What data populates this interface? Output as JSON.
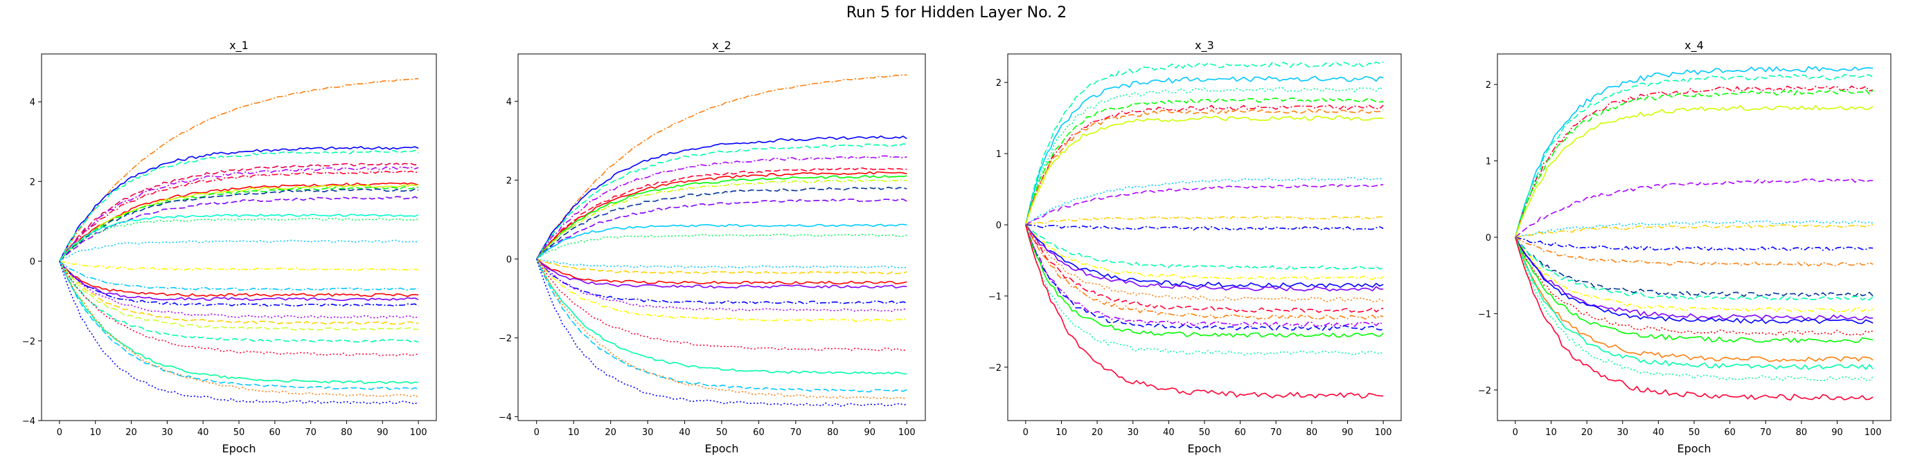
{
  "figure": {
    "suptitle": "Run 5 for Hidden Layer No. 2"
  },
  "chart_data": [
    {
      "type": "line",
      "title": "x_1",
      "xlabel": "Epoch",
      "ylabel": "",
      "xlim": [
        -5,
        105
      ],
      "ylim": [
        -4,
        5.2
      ],
      "xticks": [
        0,
        10,
        20,
        30,
        40,
        50,
        60,
        70,
        80,
        90,
        100
      ],
      "yticks": [
        -4,
        -2,
        0,
        2,
        4
      ],
      "grid": false,
      "series": [
        {
          "color": "#ff7f0e",
          "dash": "dashdot",
          "end": 4.75,
          "s": 0.45,
          "k": 0.06
        },
        {
          "color": "#0000ff",
          "dash": "solid",
          "end": 2.85,
          "s": 1.0,
          "k": 0.12
        },
        {
          "color": "#00ffaa",
          "dash": "dashed",
          "end": 2.75,
          "s": 0.9,
          "k": 0.12
        },
        {
          "color": "#e6004c",
          "dash": "dashed",
          "end": 2.45,
          "s": 0.8,
          "k": 0.1
        },
        {
          "color": "#aa00ff",
          "dash": "dashdot",
          "end": 2.35,
          "s": 0.8,
          "k": 0.1
        },
        {
          "color": "#ff0033",
          "dash": "dashdot",
          "end": 2.25,
          "s": 0.8,
          "k": 0.1
        },
        {
          "color": "#ff0000",
          "dash": "solid",
          "end": 1.95,
          "s": 0.8,
          "k": 0.1
        },
        {
          "color": "#ccff00",
          "dash": "solid",
          "end": 1.9,
          "s": 0.8,
          "k": 0.1
        },
        {
          "color": "#00ff00",
          "dash": "dashed",
          "end": 1.85,
          "s": 0.8,
          "k": 0.1
        },
        {
          "color": "#003399",
          "dash": "dashed",
          "end": 1.8,
          "s": 0.8,
          "k": 0.1
        },
        {
          "color": "#7f00ff",
          "dash": "dashed",
          "end": 1.6,
          "s": 0.8,
          "k": 0.1
        },
        {
          "color": "#00ffcc",
          "dash": "solid",
          "end": 1.15,
          "s": 0.7,
          "k": 0.2
        },
        {
          "color": "#00ff55",
          "dash": "dotted",
          "end": 1.05,
          "s": 0.7,
          "k": 0.2
        },
        {
          "color": "#00ccff",
          "dash": "dotted",
          "end": 0.5,
          "s": 0.7,
          "k": 0.2
        },
        {
          "color": "#ffff00",
          "dash": "dashdot",
          "end": -0.2,
          "s": 0.7,
          "k": 0.2
        },
        {
          "color": "#00c8ff",
          "dash": "dashdot",
          "end": -0.7,
          "s": 0.7,
          "k": 0.2
        },
        {
          "color": "#ff0000",
          "dash": "solid",
          "end": -0.85,
          "s": 0.9,
          "k": 0.25
        },
        {
          "color": "#7f00ff",
          "dash": "solid",
          "end": -0.95,
          "s": 0.9,
          "k": 0.25
        },
        {
          "color": "#0000ff",
          "dash": "dashdot",
          "end": -1.1,
          "s": 0.8,
          "k": 0.2
        },
        {
          "color": "#aa00ff",
          "dash": "dotted",
          "end": -1.4,
          "s": 0.8,
          "k": 0.15
        },
        {
          "color": "#ffd000",
          "dash": "dashed",
          "end": -1.55,
          "s": 0.8,
          "k": 0.15
        },
        {
          "color": "#ccff33",
          "dash": "dashed",
          "end": -1.7,
          "s": 0.8,
          "k": 0.15
        },
        {
          "color": "#00ffaa",
          "dash": "dashed",
          "end": -2.0,
          "s": 0.8,
          "k": 0.15
        },
        {
          "color": "#ff0033",
          "dash": "dotted",
          "end": -2.35,
          "s": 0.8,
          "k": 0.12
        },
        {
          "color": "#00ff99",
          "dash": "solid",
          "end": -3.05,
          "s": 0.8,
          "k": 0.12
        },
        {
          "color": "#00c8ff",
          "dash": "dashed",
          "end": -3.2,
          "s": 0.8,
          "k": 0.12
        },
        {
          "color": "#ff7f0e",
          "dash": "dotted",
          "end": -3.4,
          "s": 0.8,
          "k": 0.1
        },
        {
          "color": "#0000ff",
          "dash": "dotted",
          "end": -3.55,
          "s": 1.0,
          "k": 0.15
        }
      ]
    },
    {
      "type": "line",
      "title": "x_2",
      "xlabel": "Epoch",
      "ylabel": "",
      "xlim": [
        -5,
        105
      ],
      "ylim": [
        -4.1,
        5.2
      ],
      "xticks": [
        0,
        10,
        20,
        30,
        40,
        50,
        60,
        70,
        80,
        90,
        100
      ],
      "yticks": [
        -4,
        -2,
        0,
        2,
        4
      ],
      "grid": false,
      "series": [
        {
          "color": "#ff7f0e",
          "dash": "dashdot",
          "end": 4.85,
          "s": 0.45,
          "k": 0.06
        },
        {
          "color": "#0000ff",
          "dash": "solid",
          "end": 3.1,
          "s": 1.0,
          "k": 0.1
        },
        {
          "color": "#00ffaa",
          "dash": "dashed",
          "end": 2.9,
          "s": 0.9,
          "k": 0.1
        },
        {
          "color": "#aa00ff",
          "dash": "dashdot",
          "end": 2.6,
          "s": 0.8,
          "k": 0.1
        },
        {
          "color": "#ff0033",
          "dash": "dashed",
          "end": 2.3,
          "s": 0.8,
          "k": 0.1
        },
        {
          "color": "#ff0000",
          "dash": "solid",
          "end": 2.2,
          "s": 0.8,
          "k": 0.1
        },
        {
          "color": "#00ff00",
          "dash": "solid",
          "end": 2.1,
          "s": 0.8,
          "k": 0.1
        },
        {
          "color": "#ccff00",
          "dash": "dashdot",
          "end": 2.0,
          "s": 0.8,
          "k": 0.1
        },
        {
          "color": "#003399",
          "dash": "dashed",
          "end": 1.8,
          "s": 0.8,
          "k": 0.1
        },
        {
          "color": "#7f00ff",
          "dash": "dashed",
          "end": 1.5,
          "s": 0.8,
          "k": 0.1
        },
        {
          "color": "#00ccff",
          "dash": "solid",
          "end": 0.85,
          "s": 0.7,
          "k": 0.2
        },
        {
          "color": "#00ff55",
          "dash": "dotted",
          "end": 0.6,
          "s": 0.7,
          "k": 0.2
        },
        {
          "color": "#00c8ff",
          "dash": "dotted",
          "end": -0.2,
          "s": 0.7,
          "k": 0.2
        },
        {
          "color": "#ffd000",
          "dash": "dashed",
          "end": -0.35,
          "s": 0.7,
          "k": 0.2
        },
        {
          "color": "#ff0000",
          "dash": "solid",
          "end": -0.6,
          "s": 0.9,
          "k": 0.25
        },
        {
          "color": "#7f00ff",
          "dash": "solid",
          "end": -0.7,
          "s": 0.9,
          "k": 0.25
        },
        {
          "color": "#0000ff",
          "dash": "dashdot",
          "end": -1.1,
          "s": 0.8,
          "k": 0.2
        },
        {
          "color": "#aa00ff",
          "dash": "dotted",
          "end": -1.3,
          "s": 0.8,
          "k": 0.15
        },
        {
          "color": "#ffff00",
          "dash": "dashdot",
          "end": -1.55,
          "s": 0.8,
          "k": 0.15
        },
        {
          "color": "#ff0033",
          "dash": "dotted",
          "end": -2.3,
          "s": 0.8,
          "k": 0.12
        },
        {
          "color": "#00ffaa",
          "dash": "solid",
          "end": -2.9,
          "s": 0.8,
          "k": 0.12
        },
        {
          "color": "#00c8ff",
          "dash": "dashed",
          "end": -3.35,
          "s": 0.8,
          "k": 0.12
        },
        {
          "color": "#ff7f0e",
          "dash": "dotted",
          "end": -3.55,
          "s": 0.8,
          "k": 0.1
        },
        {
          "color": "#0000ff",
          "dash": "dotted",
          "end": -3.7,
          "s": 1.0,
          "k": 0.15
        }
      ]
    },
    {
      "type": "line",
      "title": "x_3",
      "xlabel": "Epoch",
      "ylabel": "",
      "xlim": [
        -5,
        105
      ],
      "ylim": [
        -2.75,
        2.4
      ],
      "xticks": [
        0,
        10,
        20,
        30,
        40,
        50,
        60,
        70,
        80,
        90,
        100
      ],
      "yticks": [
        -2,
        -1,
        0,
        1,
        2
      ],
      "grid": false,
      "series": [
        {
          "color": "#00ffaa",
          "dash": "dashed",
          "end": 2.25,
          "s": 0.9,
          "k": 0.2
        },
        {
          "color": "#00c8ff",
          "dash": "solid",
          "end": 2.05,
          "s": 0.9,
          "k": 0.2
        },
        {
          "color": "#00ff99",
          "dash": "dotted",
          "end": 1.9,
          "s": 0.8,
          "k": 0.2
        },
        {
          "color": "#00ff00",
          "dash": "dashed",
          "end": 1.75,
          "s": 0.8,
          "k": 0.2
        },
        {
          "color": "#ff0033",
          "dash": "dashdot",
          "end": 1.65,
          "s": 0.8,
          "k": 0.2
        },
        {
          "color": "#ff7f0e",
          "dash": "dashed",
          "end": 1.6,
          "s": 0.8,
          "k": 0.2
        },
        {
          "color": "#ccff00",
          "dash": "solid",
          "end": 1.5,
          "s": 0.8,
          "k": 0.2
        },
        {
          "color": "#00ccff",
          "dash": "dotted",
          "end": 0.65,
          "s": 0.5,
          "k": 0.1
        },
        {
          "color": "#aa00ff",
          "dash": "dashed",
          "end": 0.55,
          "s": 0.5,
          "k": 0.1
        },
        {
          "color": "#ffd000",
          "dash": "dashdot",
          "end": 0.1,
          "s": 0.5,
          "k": 0.15
        },
        {
          "color": "#0000ff",
          "dash": "dashdot",
          "end": -0.05,
          "s": 0.6,
          "k": 0.15
        },
        {
          "color": "#00ffaa",
          "dash": "dashed",
          "end": -0.6,
          "s": 0.6,
          "k": 0.15
        },
        {
          "color": "#ffff00",
          "dash": "dashdot",
          "end": -0.75,
          "s": 0.6,
          "k": 0.15
        },
        {
          "color": "#0000ff",
          "dash": "solid",
          "end": -0.85,
          "s": 0.8,
          "k": 0.15
        },
        {
          "color": "#7f00ff",
          "dash": "solid",
          "end": -0.9,
          "s": 0.8,
          "k": 0.15
        },
        {
          "color": "#ff7f0e",
          "dash": "dotted",
          "end": -1.05,
          "s": 0.8,
          "k": 0.15
        },
        {
          "color": "#ff0033",
          "dash": "dashed",
          "end": -1.2,
          "s": 0.8,
          "k": 0.15
        },
        {
          "color": "#ff7f0e",
          "dash": "dashdot",
          "end": -1.3,
          "s": 0.8,
          "k": 0.15
        },
        {
          "color": "#aa00ff",
          "dash": "dashdot",
          "end": -1.4,
          "s": 0.8,
          "k": 0.2
        },
        {
          "color": "#0000ff",
          "dash": "dashed",
          "end": -1.45,
          "s": 0.8,
          "k": 0.2
        },
        {
          "color": "#00ff00",
          "dash": "solid",
          "end": -1.55,
          "s": 0.8,
          "k": 0.2
        },
        {
          "color": "#00ffaa",
          "dash": "dotted",
          "end": -1.8,
          "s": 0.8,
          "k": 0.2
        },
        {
          "color": "#ff0033",
          "dash": "solid",
          "end": -2.4,
          "s": 1.0,
          "k": 0.15
        }
      ]
    },
    {
      "type": "line",
      "title": "x_4",
      "xlabel": "Epoch",
      "ylabel": "",
      "xlim": [
        -5,
        105
      ],
      "ylim": [
        -2.4,
        2.4
      ],
      "xticks": [
        0,
        10,
        20,
        30,
        40,
        50,
        60,
        70,
        80,
        90,
        100
      ],
      "yticks": [
        -2,
        -1,
        0,
        1,
        2
      ],
      "grid": false,
      "series": [
        {
          "color": "#00c8ff",
          "dash": "solid",
          "end": 2.2,
          "s": 0.9,
          "k": 0.15
        },
        {
          "color": "#00ffaa",
          "dash": "dashed",
          "end": 2.1,
          "s": 0.9,
          "k": 0.15
        },
        {
          "color": "#ff0033",
          "dash": "dashdot",
          "end": 1.95,
          "s": 0.8,
          "k": 0.15
        },
        {
          "color": "#00ff00",
          "dash": "dashed",
          "end": 1.9,
          "s": 0.8,
          "k": 0.15
        },
        {
          "color": "#ccff00",
          "dash": "solid",
          "end": 1.7,
          "s": 0.8,
          "k": 0.15
        },
        {
          "color": "#aa00ff",
          "dash": "dashed",
          "end": 0.75,
          "s": 0.6,
          "k": 0.1
        },
        {
          "color": "#00ccff",
          "dash": "dotted",
          "end": 0.2,
          "s": 0.5,
          "k": 0.1
        },
        {
          "color": "#ffd000",
          "dash": "dashdot",
          "end": 0.15,
          "s": 0.5,
          "k": 0.1
        },
        {
          "color": "#0000ff",
          "dash": "dashdot",
          "end": -0.15,
          "s": 0.6,
          "k": 0.15
        },
        {
          "color": "#ff7f0e",
          "dash": "dashdot",
          "end": -0.35,
          "s": 0.6,
          "k": 0.15
        },
        {
          "color": "#003399",
          "dash": "dashed",
          "end": -0.75,
          "s": 0.7,
          "k": 0.15
        },
        {
          "color": "#00ffaa",
          "dash": "dashed",
          "end": -0.8,
          "s": 0.7,
          "k": 0.15
        },
        {
          "color": "#ffff00",
          "dash": "dashdot",
          "end": -0.95,
          "s": 0.7,
          "k": 0.15
        },
        {
          "color": "#7f00ff",
          "dash": "solid",
          "end": -1.05,
          "s": 0.8,
          "k": 0.15
        },
        {
          "color": "#0000ff",
          "dash": "solid",
          "end": -1.1,
          "s": 0.8,
          "k": 0.15
        },
        {
          "color": "#ff0000",
          "dash": "dotted",
          "end": -1.25,
          "s": 0.8,
          "k": 0.15
        },
        {
          "color": "#00ff00",
          "dash": "solid",
          "end": -1.35,
          "s": 0.8,
          "k": 0.15
        },
        {
          "color": "#ff7f0e",
          "dash": "solid",
          "end": -1.6,
          "s": 0.8,
          "k": 0.15
        },
        {
          "color": "#00ffaa",
          "dash": "solid",
          "end": -1.7,
          "s": 0.8,
          "k": 0.15
        },
        {
          "color": "#00ff99",
          "dash": "dotted",
          "end": -1.85,
          "s": 0.8,
          "k": 0.15
        },
        {
          "color": "#ff0033",
          "dash": "solid",
          "end": -2.1,
          "s": 1.0,
          "k": 0.15
        }
      ]
    }
  ]
}
